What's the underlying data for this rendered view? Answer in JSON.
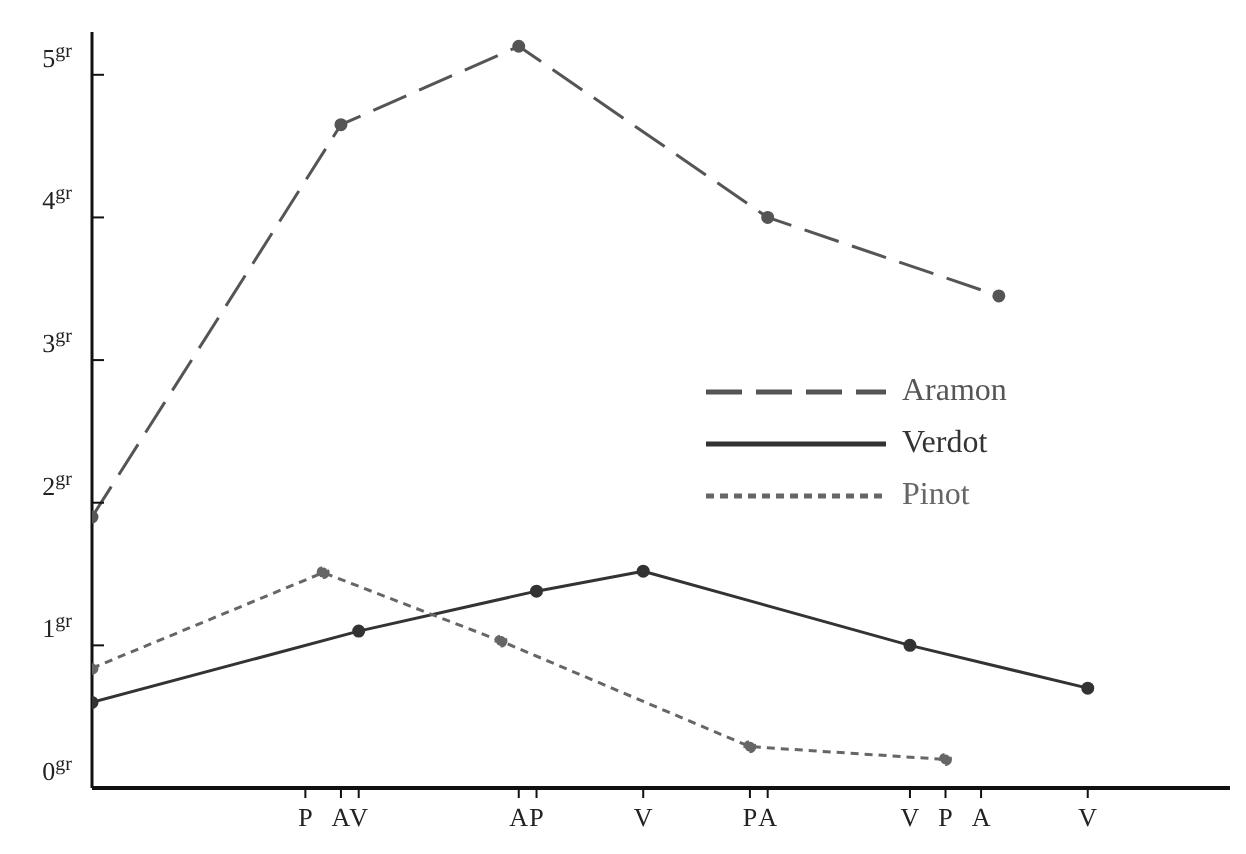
{
  "chart_data": {
    "type": "line",
    "categories": [
      null,
      null,
      null,
      null,
      null,
      null,
      null,
      null,
      null,
      null,
      null,
      null,
      "P",
      null,
      "A",
      "V",
      null,
      null,
      null,
      null,
      null,
      null,
      null,
      null,
      "A",
      "P",
      null,
      null,
      null,
      null,
      null,
      "V",
      null,
      null,
      null,
      null,
      null,
      "P",
      "A",
      null,
      null,
      null,
      null,
      null,
      null,
      null,
      "V",
      null,
      "P",
      null,
      "A",
      null,
      null,
      null,
      null,
      null,
      "V",
      null,
      null,
      null,
      null,
      null,
      null,
      null,
      null
    ],
    "ylim": [
      0,
      5.3
    ],
    "yticks": [
      {
        "value": 0,
        "label": "0$^{gr}$"
      },
      {
        "value": 1,
        "label": "1$^{gr}$"
      },
      {
        "value": 2,
        "label": "2$^{gr}$"
      },
      {
        "value": 3,
        "label": "3$^{gr}$"
      },
      {
        "value": 4,
        "label": "4$^{gr}$"
      },
      {
        "value": 5,
        "label": "5$^{gr}$"
      }
    ],
    "legend": "right",
    "marker": "circle",
    "series": [
      {
        "name": "Aramon",
        "color": "#555555",
        "line_style": "dashed",
        "values": [
          1.9,
          null,
          null,
          null,
          null,
          null,
          null,
          null,
          null,
          null,
          null,
          null,
          null,
          null,
          4.65,
          null,
          null,
          null,
          null,
          null,
          null,
          null,
          null,
          null,
          5.2,
          null,
          null,
          null,
          null,
          null,
          null,
          null,
          null,
          null,
          null,
          null,
          null,
          null,
          4.0,
          null,
          null,
          null,
          null,
          null,
          null,
          null,
          null,
          null,
          null,
          null,
          null,
          3.45,
          null,
          null,
          null,
          null,
          null,
          null,
          null,
          null,
          null,
          null,
          null,
          null,
          null
        ]
      },
      {
        "name": "Verdot",
        "color": "#333333",
        "line_style": "solid",
        "values": [
          0.6,
          null,
          null,
          null,
          null,
          null,
          null,
          null,
          null,
          null,
          null,
          null,
          null,
          null,
          null,
          1.1,
          null,
          null,
          null,
          null,
          null,
          null,
          null,
          null,
          null,
          1.38,
          null,
          null,
          null,
          null,
          null,
          1.52,
          null,
          null,
          null,
          null,
          null,
          null,
          null,
          null,
          null,
          null,
          null,
          null,
          null,
          null,
          1.0,
          null,
          null,
          null,
          null,
          null,
          null,
          null,
          null,
          null,
          0.7,
          null,
          null,
          null,
          null,
          null,
          null,
          null,
          null
        ]
      },
      {
        "name": "Pinot",
        "color": "#666666",
        "line_style": "dotted",
        "values": [
          0.84,
          null,
          null,
          null,
          null,
          null,
          null,
          null,
          null,
          null,
          null,
          null,
          null,
          1.51,
          null,
          null,
          null,
          null,
          null,
          null,
          null,
          null,
          null,
          1.03,
          null,
          null,
          null,
          null,
          null,
          null,
          null,
          null,
          null,
          null,
          null,
          null,
          null,
          0.29,
          null,
          null,
          null,
          null,
          null,
          null,
          null,
          null,
          null,
          null,
          0.2,
          null,
          null,
          null,
          null,
          null,
          null,
          null,
          null,
          null,
          null,
          null,
          null,
          null,
          null,
          null,
          null
        ]
      }
    ]
  }
}
